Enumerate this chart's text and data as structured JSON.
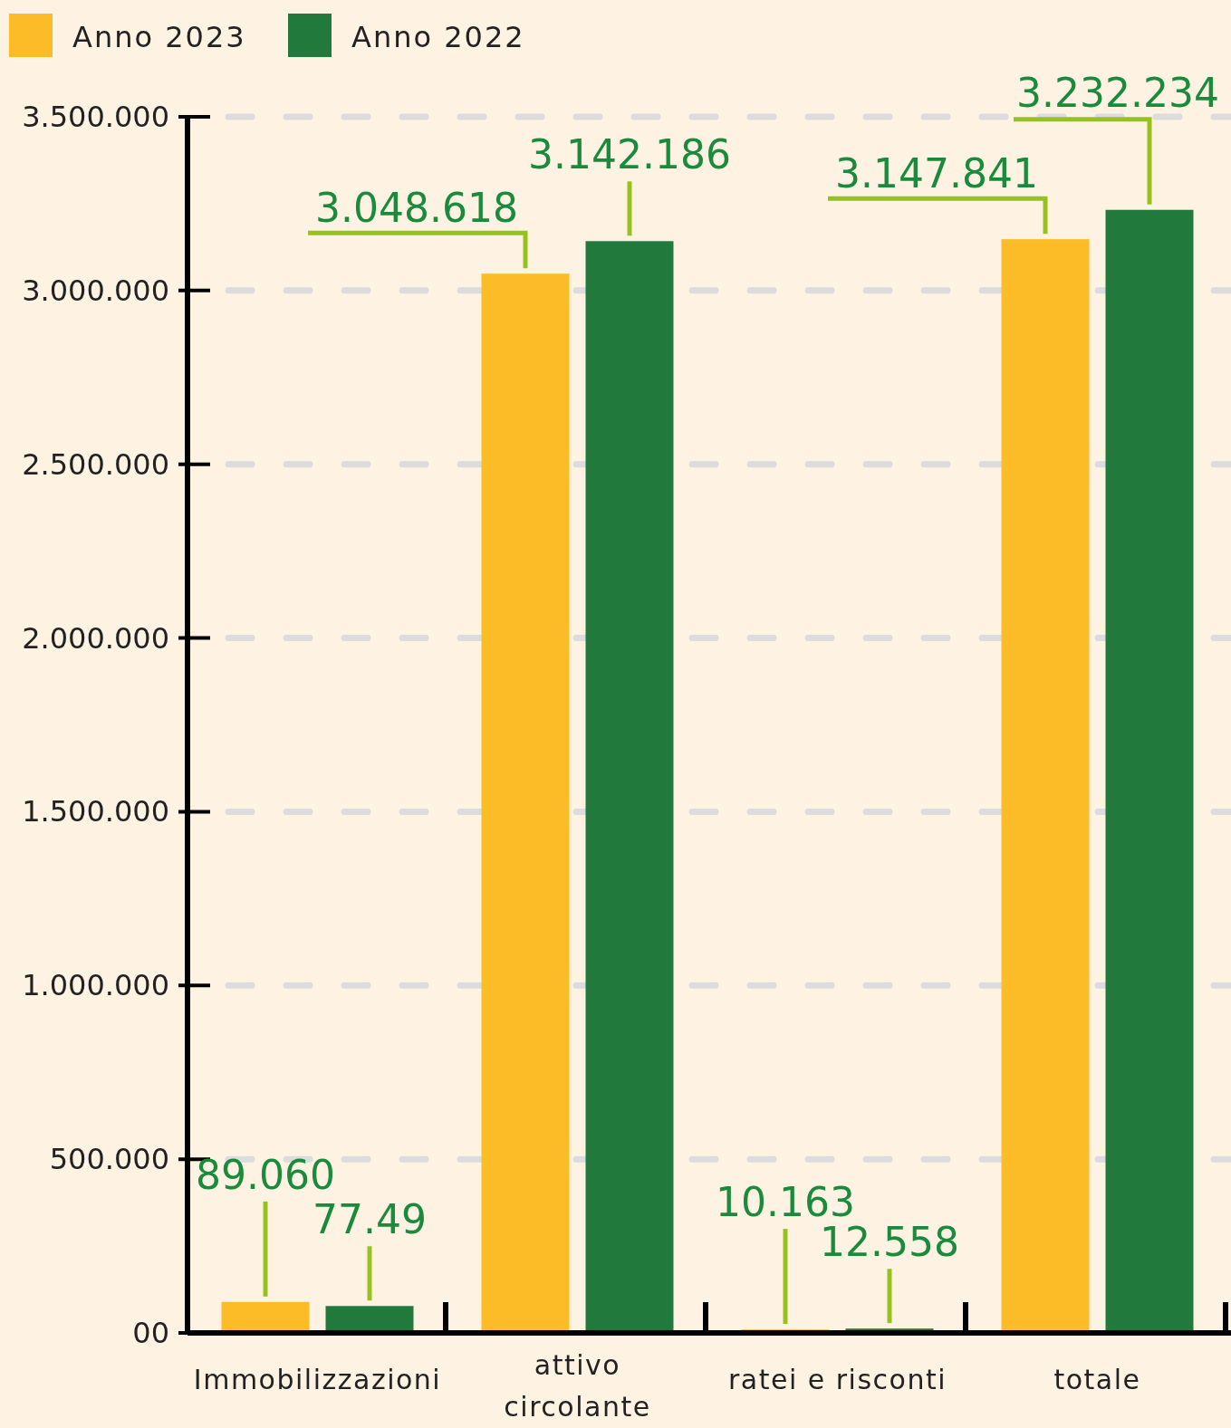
{
  "chart_data": {
    "type": "bar",
    "categories": [
      "Immobilizzazioni",
      "attivo circolante",
      "ratei e risconti",
      "totale"
    ],
    "series": [
      {
        "name": "Anno 2023",
        "color": "#fbbc28",
        "values": [
          89060,
          3048618,
          10163,
          3147841
        ],
        "value_labels": [
          "89.060",
          "3.048.618",
          "10.163",
          "3.147.841"
        ]
      },
      {
        "name": "Anno 2022",
        "color": "#217a3c",
        "values": [
          77490,
          3142186,
          12558,
          3232234
        ],
        "value_labels": [
          null,
          "3.142.186",
          "12.558",
          "3.232.234"
        ]
      }
    ],
    "ylim": [
      0,
      3500000
    ],
    "yticks": [
      {
        "value": 0,
        "label": "00"
      },
      {
        "value": 500000,
        "label": "500.000"
      },
      {
        "value": 1000000,
        "label": "1.000.000"
      },
      {
        "value": 1500000,
        "label": "1.500.000"
      },
      {
        "value": 2000000,
        "label": "2.000.000"
      },
      {
        "value": 2500000,
        "label": "2.500.000"
      },
      {
        "value": 3000000,
        "label": "3.000.000"
      },
      {
        "value": 3500000,
        "label": "3.500.000"
      }
    ],
    "annotations": [
      "77.49"
    ],
    "grid": "y",
    "legend": "top left"
  }
}
